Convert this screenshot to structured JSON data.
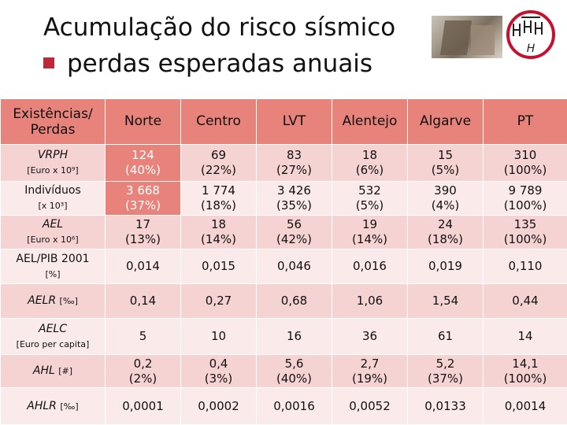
{
  "title": "Acumulação do risco sísmico",
  "subtitle": "perdas esperadas anuais",
  "table": {
    "header": {
      "label": "Existências/ Perdas",
      "columns": [
        "Norte",
        "Centro",
        "LVT",
        "Alentejo",
        "Algarve",
        "PT"
      ]
    },
    "rows": [
      {
        "label": "VRPH",
        "unit": "[Euro x 10⁹]",
        "cells": [
          [
            "124",
            "(40%)"
          ],
          [
            "69",
            "(22%)"
          ],
          [
            "83",
            "(27%)"
          ],
          [
            "18",
            "(6%)"
          ],
          [
            "15",
            "(5%)"
          ],
          [
            "310",
            "(100%)"
          ]
        ]
      },
      {
        "label": "Indivíduos",
        "unit": "[x 10³]",
        "cells": [
          [
            "3 668",
            "(37%)"
          ],
          [
            "1 774",
            "(18%)"
          ],
          [
            "3 426",
            "(35%)"
          ],
          [
            "532",
            "(5%)"
          ],
          [
            "390",
            "(4%)"
          ],
          [
            "9 789",
            "(100%)"
          ]
        ]
      },
      {
        "label": "AEL",
        "unit": "[Euro x 10⁶]",
        "cells": [
          [
            "17",
            "(13%)"
          ],
          [
            "18",
            "(14%)"
          ],
          [
            "56",
            "(42%)"
          ],
          [
            "19",
            "(14%)"
          ],
          [
            "24",
            "(18%)"
          ],
          [
            "135",
            "(100%)"
          ]
        ]
      },
      {
        "label": "AEL/PIB 2001",
        "unit": "[%]",
        "cells": [
          [
            "0,014"
          ],
          [
            "0,015"
          ],
          [
            "0,046"
          ],
          [
            "0,016"
          ],
          [
            "0,019"
          ],
          [
            "0,110"
          ]
        ]
      },
      {
        "label": "AELR",
        "unit_inline": "[‰]",
        "cells": [
          [
            "0,14"
          ],
          [
            "0,27"
          ],
          [
            "0,68"
          ],
          [
            "1,06"
          ],
          [
            "1,54"
          ],
          [
            "0,44"
          ]
        ]
      },
      {
        "label": "AELC",
        "unit": "[Euro per capita]",
        "cells": [
          [
            "5"
          ],
          [
            "10"
          ],
          [
            "16"
          ],
          [
            "36"
          ],
          [
            "61"
          ],
          [
            "14"
          ]
        ]
      },
      {
        "label": "AHL",
        "unit_inline": "[#]",
        "cells": [
          [
            "0,2",
            "(2%)"
          ],
          [
            "0,4",
            "(3%)"
          ],
          [
            "5,6",
            "(40%)"
          ],
          [
            "2,7",
            "(19%)"
          ],
          [
            "5,2",
            "(37%)"
          ],
          [
            "14,1",
            "(100%)"
          ]
        ]
      },
      {
        "label": "AHLR",
        "unit_inline": "[‰]",
        "cells": [
          [
            "0,0001"
          ],
          [
            "0,0002"
          ],
          [
            "0,0016"
          ],
          [
            "0,0052"
          ],
          [
            "0,0133"
          ],
          [
            "0,0014"
          ]
        ]
      }
    ]
  },
  "logo_text": "H"
}
